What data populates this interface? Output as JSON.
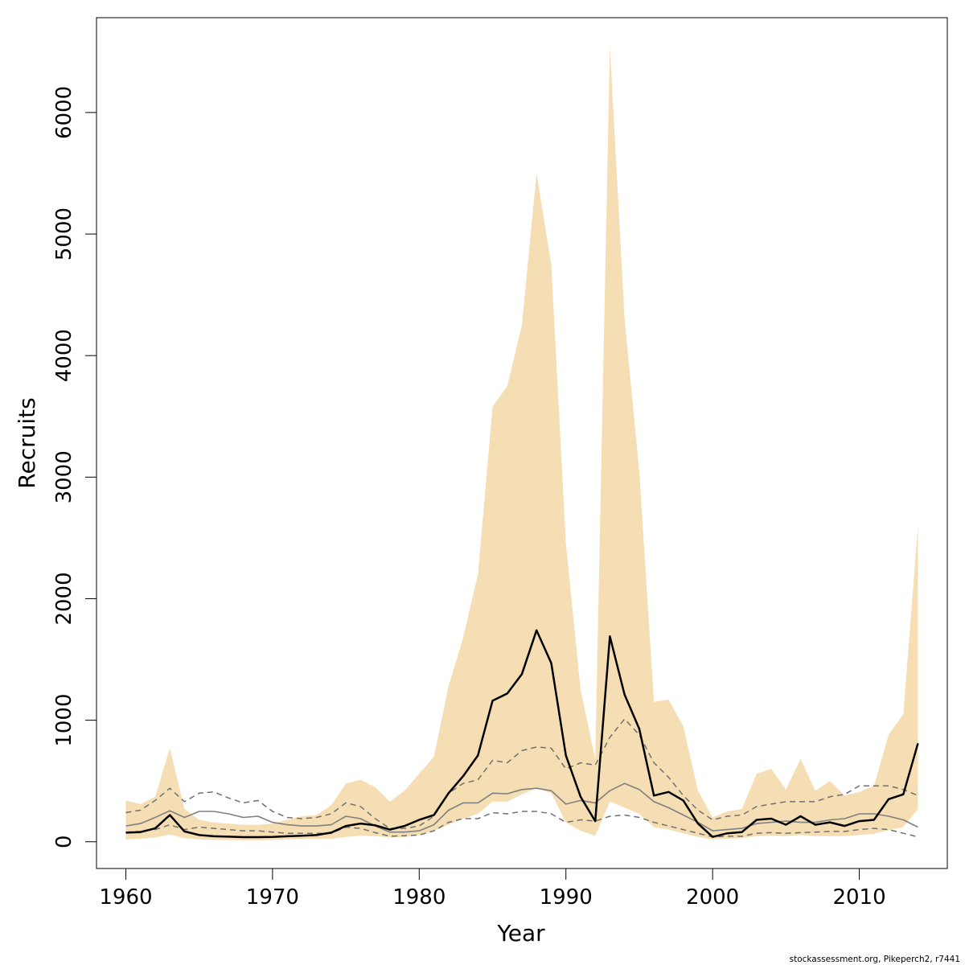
{
  "chart_data": {
    "type": "line",
    "xlabel": "Year",
    "ylabel": "Recruits",
    "xlim": [
      1958,
      2016
    ],
    "ylim": [
      -220,
      6780
    ],
    "xticks": [
      1960,
      1970,
      1980,
      1990,
      2000,
      2010
    ],
    "yticks": [
      0,
      1000,
      2000,
      3000,
      4000,
      5000,
      6000
    ],
    "grid": false,
    "x": [
      1960,
      1961,
      1962,
      1963,
      1964,
      1965,
      1966,
      1967,
      1968,
      1969,
      1970,
      1971,
      1972,
      1973,
      1974,
      1975,
      1976,
      1977,
      1978,
      1979,
      1980,
      1981,
      1982,
      1983,
      1984,
      1985,
      1986,
      1987,
      1988,
      1989,
      1990,
      1991,
      1992,
      1993,
      1994,
      1995,
      1996,
      1997,
      1998,
      1999,
      2000,
      2001,
      2002,
      2003,
      2004,
      2005,
      2006,
      2007,
      2008,
      2009,
      2010,
      2011,
      2012,
      2013,
      2014
    ],
    "series": [
      {
        "kind": "band",
        "color": "#f5deb3",
        "lower": [
          20,
          25,
          35,
          60,
          30,
          20,
          15,
          15,
          12,
          12,
          15,
          20,
          22,
          22,
          25,
          40,
          50,
          45,
          35,
          40,
          55,
          90,
          140,
          190,
          230,
          330,
          330,
          390,
          440,
          400,
          160,
          90,
          50,
          330,
          280,
          230,
          120,
          100,
          70,
          40,
          20,
          25,
          30,
          45,
          50,
          45,
          55,
          45,
          45,
          45,
          55,
          65,
          95,
          120,
          270
        ],
        "upper": [
          340,
          310,
          370,
          770,
          270,
          180,
          160,
          150,
          140,
          140,
          150,
          180,
          210,
          220,
          300,
          480,
          510,
          450,
          330,
          420,
          560,
          700,
          1280,
          1680,
          2200,
          3580,
          3750,
          4250,
          5500,
          4750,
          2450,
          1250,
          680,
          6550,
          4300,
          3050,
          1150,
          1170,
          950,
          420,
          200,
          250,
          270,
          560,
          600,
          430,
          680,
          420,
          500,
          380,
          410,
          460,
          880,
          1050,
          2600
        ]
      },
      {
        "kind": "line",
        "color": "#000000",
        "width": 2.5,
        "dash": "",
        "values": [
          75,
          80,
          110,
          220,
          85,
          55,
          45,
          42,
          38,
          38,
          40,
          45,
          50,
          55,
          75,
          130,
          150,
          135,
          100,
          130,
          180,
          220,
          400,
          540,
          710,
          1160,
          1220,
          1380,
          1740,
          1470,
          710,
          370,
          170,
          1690,
          1210,
          930,
          380,
          410,
          340,
          150,
          40,
          70,
          80,
          180,
          190,
          140,
          210,
          140,
          160,
          130,
          170,
          180,
          350,
          390,
          810
        ]
      },
      {
        "kind": "line",
        "color": "#808080",
        "width": 1.6,
        "dash": "",
        "values": [
          130,
          150,
          200,
          255,
          200,
          250,
          250,
          230,
          200,
          210,
          160,
          140,
          130,
          130,
          140,
          210,
          190,
          130,
          80,
          80,
          90,
          140,
          260,
          320,
          320,
          400,
          395,
          430,
          440,
          420,
          310,
          340,
          320,
          420,
          480,
          430,
          330,
          280,
          220,
          160,
          90,
          100,
          110,
          150,
          160,
          170,
          160,
          160,
          180,
          190,
          230,
          230,
          210,
          180,
          120
        ]
      },
      {
        "kind": "line",
        "color": "#707070",
        "width": 1.5,
        "dash": "7,5",
        "values": [
          240,
          260,
          340,
          440,
          330,
          400,
          410,
          360,
          320,
          340,
          250,
          200,
          190,
          200,
          230,
          320,
          290,
          190,
          110,
          110,
          130,
          210,
          400,
          480,
          510,
          670,
          650,
          750,
          780,
          770,
          600,
          650,
          630,
          860,
          1010,
          880,
          650,
          530,
          380,
          260,
          180,
          210,
          220,
          290,
          310,
          330,
          330,
          330,
          370,
          390,
          460,
          460,
          460,
          430,
          380
        ]
      },
      {
        "kind": "line",
        "color": "#707070",
        "width": 1.5,
        "dash": "7,5",
        "values": [
          80,
          85,
          100,
          140,
          100,
          120,
          110,
          100,
          90,
          90,
          80,
          70,
          70,
          70,
          70,
          120,
          110,
          75,
          45,
          50,
          55,
          90,
          160,
          190,
          190,
          240,
          230,
          250,
          250,
          230,
          160,
          180,
          170,
          210,
          220,
          200,
          160,
          130,
          100,
          70,
          40,
          45,
          45,
          70,
          75,
          70,
          75,
          80,
          85,
          85,
          100,
          110,
          100,
          70,
          40
        ]
      }
    ]
  },
  "credit_text": "stockassessment.org, Pikeperch2, r7441"
}
